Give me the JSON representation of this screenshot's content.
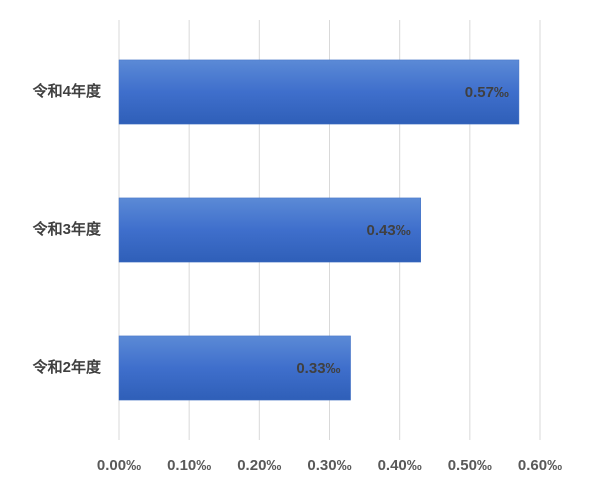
{
  "chart_data": {
    "type": "hbar",
    "categories": [
      "令和4年度",
      "令和3年度",
      "令和2年度"
    ],
    "values": [
      0.57,
      0.43,
      0.33
    ],
    "value_labels": [
      "0.57‰",
      "0.43‰",
      "0.33‰"
    ],
    "color": "#4472c4",
    "xlim": [
      0,
      0.6
    ],
    "xticks": [
      {
        "value": 0,
        "label": "0.00‰"
      },
      {
        "value": 0.1,
        "label": "0.10‰"
      },
      {
        "value": 0.2,
        "label": "0.20‰"
      },
      {
        "value": 0.3,
        "label": "0.30‰"
      },
      {
        "value": 0.4,
        "label": "0.40‰"
      },
      {
        "value": 0.5,
        "label": "0.50‰"
      },
      {
        "value": 0.6,
        "label": "0.60‰"
      }
    ],
    "grid": true
  }
}
